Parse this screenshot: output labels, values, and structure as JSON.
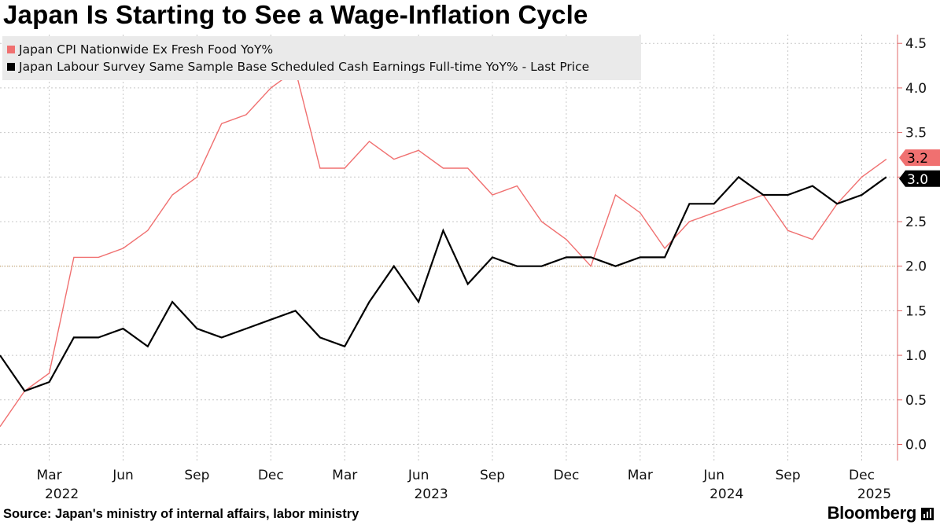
{
  "title": "Japan Is Starting to See a Wage-Inflation Cycle",
  "source": "Source: Japan's ministry of internal affairs, labor ministry",
  "brand": "Bloomberg",
  "chart_data": {
    "type": "line",
    "y_axis_position": "right",
    "ylim": [
      -0.1,
      4.6
    ],
    "y_ticks": [
      0.0,
      0.5,
      1.0,
      1.5,
      2.0,
      2.5,
      3.0,
      3.5,
      4.0,
      4.5
    ],
    "y_tick_labels": [
      "0.0",
      "0.5",
      "1.0",
      "1.5",
      "2.0",
      "2.5",
      "3.0",
      "3.5",
      "4.0",
      "4.5"
    ],
    "grid": true,
    "reference_line": 2.0,
    "x": [
      "2022-01",
      "2022-02",
      "2022-03",
      "2022-04",
      "2022-05",
      "2022-06",
      "2022-07",
      "2022-08",
      "2022-09",
      "2022-10",
      "2022-11",
      "2022-12",
      "2023-01",
      "2023-02",
      "2023-03",
      "2023-04",
      "2023-05",
      "2023-06",
      "2023-07",
      "2023-08",
      "2023-09",
      "2023-10",
      "2023-11",
      "2023-12",
      "2024-01",
      "2024-02",
      "2024-03",
      "2024-04",
      "2024-05",
      "2024-06",
      "2024-07",
      "2024-08",
      "2024-09",
      "2024-10",
      "2024-11",
      "2024-12",
      "2025-01"
    ],
    "x_tick_labels": [
      {
        "x": "2022-03",
        "month": "Mar",
        "year": "2022"
      },
      {
        "x": "2022-06",
        "month": "Jun",
        "year": ""
      },
      {
        "x": "2022-09",
        "month": "Sep",
        "year": ""
      },
      {
        "x": "2022-12",
        "month": "Dec",
        "year": ""
      },
      {
        "x": "2023-03",
        "month": "Mar",
        "year": ""
      },
      {
        "x": "2023-06",
        "month": "Jun",
        "year": "2023"
      },
      {
        "x": "2023-09",
        "month": "Sep",
        "year": ""
      },
      {
        "x": "2023-12",
        "month": "Dec",
        "year": ""
      },
      {
        "x": "2024-03",
        "month": "Mar",
        "year": ""
      },
      {
        "x": "2024-06",
        "month": "Jun",
        "year": "2024"
      },
      {
        "x": "2024-09",
        "month": "Sep",
        "year": ""
      },
      {
        "x": "2024-12",
        "month": "Dec",
        "year": "2025"
      }
    ],
    "legend_position": "top-left",
    "series": [
      {
        "name": "Japan CPI Nationwide Ex Fresh Food YoY%",
        "color": "#f07070",
        "last_value_label": "3.2",
        "values": [
          0.2,
          0.6,
          0.8,
          2.1,
          2.1,
          2.2,
          2.4,
          2.8,
          3.0,
          3.6,
          3.7,
          4.0,
          4.2,
          3.1,
          3.1,
          3.4,
          3.2,
          3.3,
          3.1,
          3.1,
          2.8,
          2.9,
          2.5,
          2.3,
          2.0,
          2.8,
          2.6,
          2.2,
          2.5,
          2.6,
          2.7,
          2.8,
          2.4,
          2.3,
          2.7,
          3.0,
          3.2
        ]
      },
      {
        "name": "Japan Labour Survey Same Sample Base Scheduled Cash Earnings Full-time YoY% - Last Price",
        "color": "#000000",
        "last_value_label": "3.0",
        "values": [
          1.0,
          0.6,
          0.7,
          1.2,
          1.2,
          1.3,
          1.1,
          1.6,
          1.3,
          1.2,
          1.3,
          1.4,
          1.5,
          1.2,
          1.1,
          1.6,
          2.0,
          1.6,
          2.4,
          1.8,
          2.1,
          2.0,
          2.0,
          2.1,
          2.1,
          2.0,
          2.1,
          2.1,
          2.7,
          2.7,
          3.0,
          2.8,
          2.8,
          2.9,
          2.7,
          2.8,
          3.0
        ]
      }
    ]
  }
}
